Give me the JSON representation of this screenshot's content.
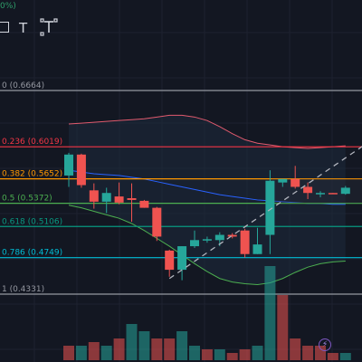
{
  "toolbar": {
    "top_fragment": "0%)",
    "tools": [
      {
        "name": "rectangle-tool-icon",
        "glyph": "▢"
      },
      {
        "name": "text-tool-icon",
        "glyph": "T"
      },
      {
        "name": "anchored-text-tool-icon",
        "glyph": "T"
      }
    ]
  },
  "fib_levels": [
    {
      "label": "0 (0.6664)",
      "price": 0.6664,
      "color": "#9598a1"
    },
    {
      "label": "0.236 (0.6019)",
      "price": 0.6019,
      "color": "#f23645"
    },
    {
      "label": "0.382 (0.5652)",
      "price": 0.5652,
      "color": "#ff9800"
    },
    {
      "label": "0.5 (0.5372)",
      "price": 0.5372,
      "color": "#4caf50"
    },
    {
      "label": "0.618 (0.5106)",
      "price": 0.5106,
      "color": "#089981"
    },
    {
      "label": "0.786 (0.4749)",
      "price": 0.4749,
      "color": "#00bcd4"
    },
    {
      "label": "1 (0.4331)",
      "price": 0.4331,
      "color": "#9598a1"
    }
  ],
  "colors": {
    "background": "#131722",
    "up": "#26a69a",
    "down": "#ef5350",
    "upper_band": "#e05a6d",
    "lower_band": "#4caf50",
    "basis": "#2962ff",
    "trendline": "#b2b5be",
    "fill": "#1e2a3d"
  },
  "chart_data": {
    "type": "candlestick",
    "candles": [
      {
        "o": 0.569,
        "h": 0.595,
        "l": 0.556,
        "c": 0.593
      },
      {
        "o": 0.593,
        "h": 0.594,
        "l": 0.555,
        "c": 0.558
      },
      {
        "o": 0.552,
        "h": 0.56,
        "l": 0.531,
        "c": 0.539
      },
      {
        "o": 0.539,
        "h": 0.555,
        "l": 0.526,
        "c": 0.549
      },
      {
        "o": 0.545,
        "h": 0.561,
        "l": 0.536,
        "c": 0.538
      },
      {
        "o": 0.543,
        "h": 0.56,
        "l": 0.516,
        "c": 0.541
      },
      {
        "o": 0.54,
        "h": 0.541,
        "l": 0.532,
        "c": 0.532
      },
      {
        "o": 0.532,
        "h": 0.533,
        "l": 0.494,
        "c": 0.499
      },
      {
        "o": 0.483,
        "h": 0.484,
        "l": 0.453,
        "c": 0.461
      },
      {
        "o": 0.461,
        "h": 0.488,
        "l": 0.449,
        "c": 0.488
      },
      {
        "o": 0.488,
        "h": 0.506,
        "l": 0.486,
        "c": 0.495
      },
      {
        "o": 0.495,
        "h": 0.499,
        "l": 0.492,
        "c": 0.496
      },
      {
        "o": 0.495,
        "h": 0.504,
        "l": 0.488,
        "c": 0.501
      },
      {
        "o": 0.501,
        "h": 0.503,
        "l": 0.497,
        "c": 0.499
      },
      {
        "o": 0.506,
        "h": 0.508,
        "l": 0.475,
        "c": 0.479
      },
      {
        "o": 0.479,
        "h": 0.509,
        "l": 0.479,
        "c": 0.49
      },
      {
        "o": 0.501,
        "h": 0.575,
        "l": 0.479,
        "c": 0.563
      },
      {
        "o": 0.561,
        "h": 0.565,
        "l": 0.556,
        "c": 0.565
      },
      {
        "o": 0.565,
        "h": 0.58,
        "l": 0.554,
        "c": 0.556
      },
      {
        "o": 0.556,
        "h": 0.561,
        "l": 0.542,
        "c": 0.549
      },
      {
        "o": 0.549,
        "h": 0.551,
        "l": 0.544,
        "c": 0.549
      },
      {
        "o": 0.549,
        "h": 0.549,
        "l": 0.548,
        "c": 0.548
      },
      {
        "o": 0.548,
        "h": 0.557,
        "l": 0.547,
        "c": 0.555
      }
    ],
    "volume": [
      2,
      2,
      2.5,
      2,
      3,
      5,
      4,
      3,
      3,
      4,
      2,
      1.5,
      1.5,
      1,
      1.5,
      2,
      13,
      9,
      3,
      2,
      2,
      1,
      1
    ],
    "volume_up": [
      false,
      true,
      false,
      true,
      false,
      true,
      true,
      false,
      false,
      true,
      true,
      false,
      true,
      false,
      false,
      true,
      true,
      false,
      false,
      false,
      false,
      false,
      true
    ],
    "upper_band": [
      0.628,
      0.629,
      0.63,
      0.631,
      0.632,
      0.633,
      0.634,
      0.636,
      0.638,
      0.638,
      0.636,
      0.632,
      0.625,
      0.617,
      0.61,
      0.606,
      0.604,
      0.602,
      0.601,
      0.6,
      0.601,
      0.602,
      0.603
    ],
    "basis": [
      0.575,
      0.573,
      0.571,
      0.57,
      0.569,
      0.567,
      0.565,
      0.562,
      0.559,
      0.556,
      0.553,
      0.55,
      0.547,
      0.545,
      0.543,
      0.541,
      0.54,
      0.539,
      0.538,
      0.537,
      0.537,
      0.536,
      0.536
    ],
    "lower_band": [
      0.535,
      0.532,
      0.528,
      0.524,
      0.52,
      0.514,
      0.506,
      0.497,
      0.488,
      0.478,
      0.468,
      0.459,
      0.451,
      0.447,
      0.445,
      0.444,
      0.446,
      0.451,
      0.458,
      0.464,
      0.468,
      0.47,
      0.471
    ],
    "trendline": {
      "from": {
        "candle": 8,
        "price": 0.451
      },
      "to": {
        "candle": 23.5,
        "price": 0.604
      }
    },
    "price_range": [
      0.405,
      0.698
    ]
  }
}
